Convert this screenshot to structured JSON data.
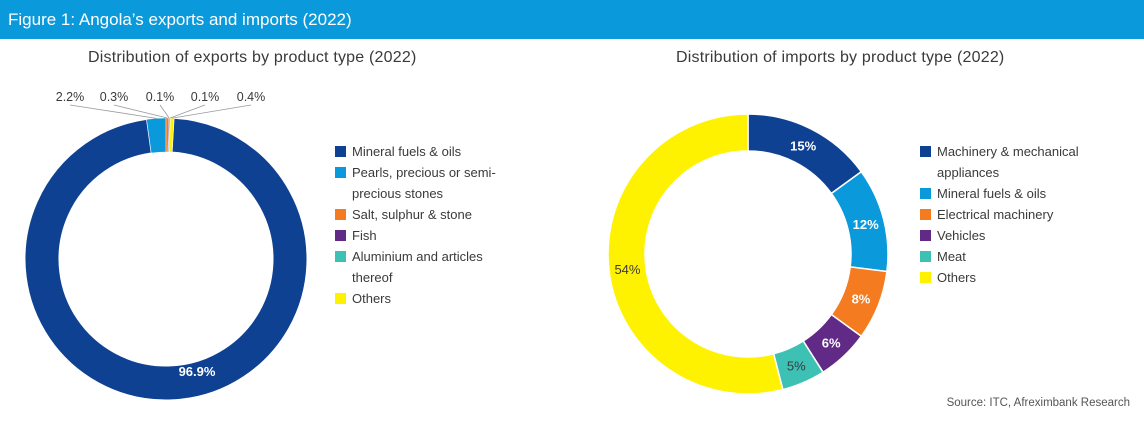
{
  "figure": {
    "title": "Figure 1: Angola’s exports and imports (2022)"
  },
  "source": "Source: ITC, Afreximbank Research",
  "chart_data": [
    {
      "type": "pie",
      "title": "Distribution of exports by product type (2022)",
      "categories": [
        "Mineral fuels & oils",
        "Pearls, precious or semi-precious stones",
        "Salt, sulphur & stone",
        "Fish",
        "Aluminium and articles thereof",
        "Others"
      ],
      "legend_lines": [
        [
          "Mineral fuels & oils"
        ],
        [
          "Pearls, precious or semi-",
          "precious stones"
        ],
        [
          "Salt, sulphur & stone"
        ],
        [
          "Fish"
        ],
        [
          "Aluminium and articles",
          "thereof"
        ],
        [
          "Others"
        ]
      ],
      "values": [
        96.9,
        2.2,
        0.3,
        0.1,
        0.1,
        0.4
      ],
      "labels": [
        "96.9%",
        "2.2%",
        "0.3%",
        "0.1%",
        "0.1%",
        "0.4%"
      ],
      "colors": [
        "#0f4193",
        "#0a9adb",
        "#f47b20",
        "#612a87",
        "#3ec1b5",
        "#fff200"
      ],
      "legend": "right"
    },
    {
      "type": "pie",
      "title": "Distribution of imports by product type (2022)",
      "categories": [
        "Machinery & mechanical appliances",
        "Mineral fuels & oils",
        "Electrical machinery",
        "Vehicles",
        "Meat",
        "Others"
      ],
      "legend_lines": [
        [
          "Machinery & mechanical",
          "appliances"
        ],
        [
          "Mineral fuels & oils"
        ],
        [
          "Electrical machinery"
        ],
        [
          "Vehicles"
        ],
        [
          "Meat"
        ],
        [
          "Others"
        ]
      ],
      "values": [
        15,
        12,
        8,
        6,
        5,
        54
      ],
      "labels": [
        "15%",
        "12%",
        "8%",
        "6%",
        "5%",
        "54%"
      ],
      "colors": [
        "#0f4193",
        "#0a9adb",
        "#f47b20",
        "#612a87",
        "#3ec1b5",
        "#fff200"
      ],
      "legend": "right"
    }
  ]
}
